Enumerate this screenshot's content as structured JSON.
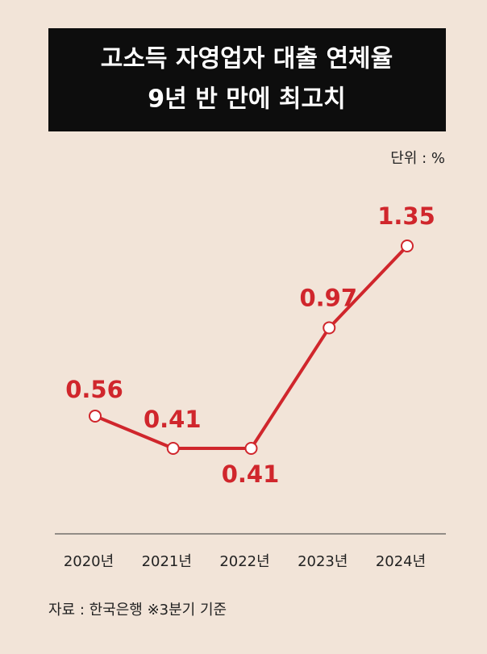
{
  "chart_data": {
    "type": "line",
    "title_lines": [
      "고소득 자영업자 대출 연체율",
      "9년 반 만에 최고치"
    ],
    "unit": "단위 : %",
    "source": "자료 : 한국은행 ※3분기 기준",
    "categories": [
      "2020년",
      "2021년",
      "2022년",
      "2023년",
      "2024년"
    ],
    "values": [
      0.56,
      0.41,
      0.41,
      0.97,
      1.35
    ],
    "color": "#d0262c"
  }
}
